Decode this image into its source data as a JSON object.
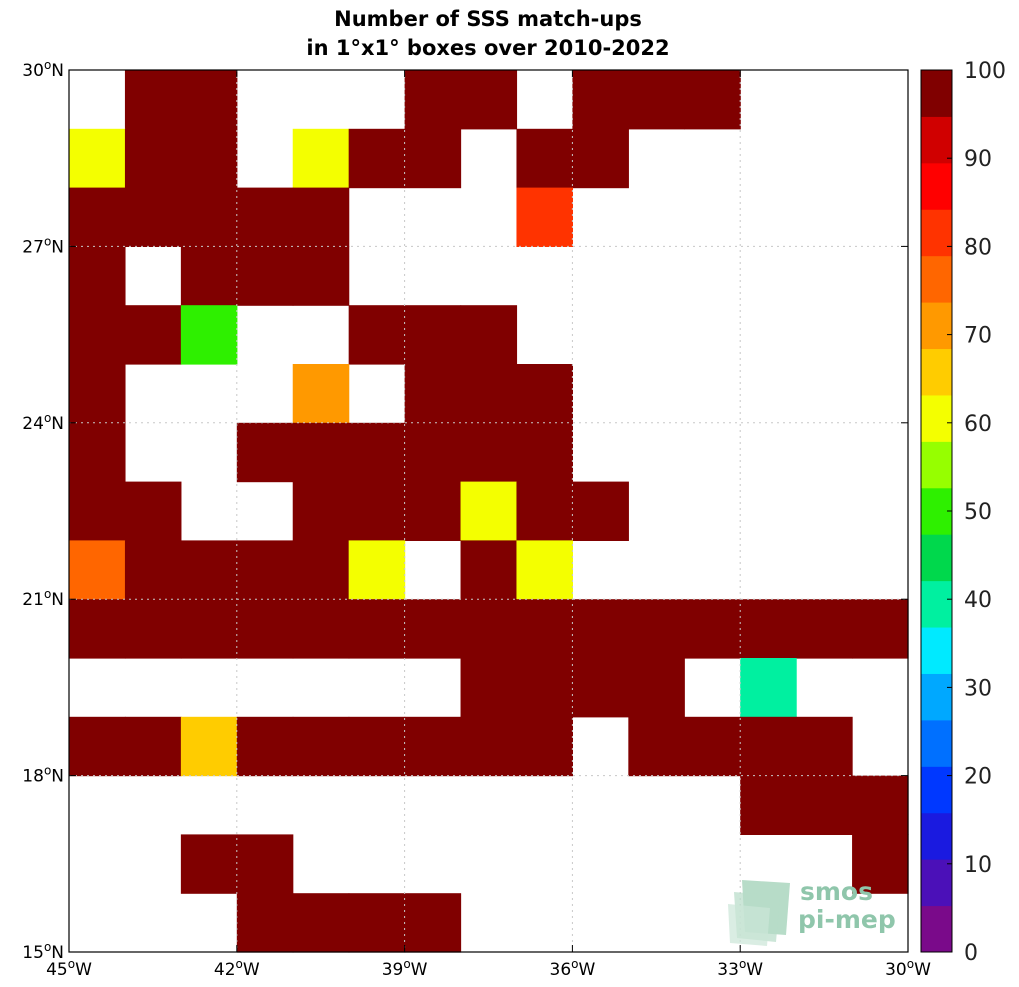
{
  "chart_data": {
    "type": "heatmap",
    "title": [
      "Number of SSS match-ups",
      "in 1°x1° boxes over 2010-2022"
    ],
    "x_ticks": [
      {
        "value": -45,
        "label": "45",
        "hemi": "W"
      },
      {
        "value": -42,
        "label": "42",
        "hemi": "W"
      },
      {
        "value": -39,
        "label": "39",
        "hemi": "W"
      },
      {
        "value": -36,
        "label": "36",
        "hemi": "W"
      },
      {
        "value": -33,
        "label": "33",
        "hemi": "W"
      },
      {
        "value": -30,
        "label": "30",
        "hemi": "W"
      }
    ],
    "y_ticks": [
      {
        "value": 15,
        "label": "15",
        "hemi": "N"
      },
      {
        "value": 18,
        "label": "18",
        "hemi": "N"
      },
      {
        "value": 21,
        "label": "21",
        "hemi": "N"
      },
      {
        "value": 24,
        "label": "24",
        "hemi": "N"
      },
      {
        "value": 27,
        "label": "27",
        "hemi": "N"
      },
      {
        "value": 30,
        "label": "30",
        "hemi": "N"
      }
    ],
    "xlim": [
      -45,
      -30
    ],
    "ylim": [
      15,
      30
    ],
    "grid": true,
    "cell_size_deg": 1,
    "colorbar": {
      "min": 0,
      "max": 100,
      "tick_labels": [
        "0",
        "10",
        "20",
        "30",
        "40",
        "50",
        "60",
        "70",
        "80",
        "90",
        "100"
      ],
      "colors": [
        "#7a0a8a",
        "#4b10b8",
        "#1a1ae0",
        "#0038ff",
        "#0070ff",
        "#00a8ff",
        "#00eaff",
        "#00f0a0",
        "#00d84c",
        "#2ef000",
        "#96ff00",
        "#f4ff00",
        "#ffcc00",
        "#ff9900",
        "#ff6600",
        "#ff3300",
        "#ff0000",
        "#d00000",
        "#800000"
      ]
    },
    "cells": [
      {
        "lon": -44,
        "lat": 29,
        "value": 100
      },
      {
        "lon": -43,
        "lat": 29,
        "value": 100
      },
      {
        "lon": -39,
        "lat": 29,
        "value": 100
      },
      {
        "lon": -38,
        "lat": 29,
        "value": 100
      },
      {
        "lon": -36,
        "lat": 29,
        "value": 100
      },
      {
        "lon": -35,
        "lat": 29,
        "value": 100
      },
      {
        "lon": -34,
        "lat": 29,
        "value": 100
      },
      {
        "lon": -45,
        "lat": 28,
        "value": 63
      },
      {
        "lon": -44,
        "lat": 28,
        "value": 100
      },
      {
        "lon": -43,
        "lat": 28,
        "value": 100
      },
      {
        "lon": -41,
        "lat": 28,
        "value": 63
      },
      {
        "lon": -40,
        "lat": 28,
        "value": 100
      },
      {
        "lon": -39,
        "lat": 28,
        "value": 100
      },
      {
        "lon": -37,
        "lat": 28,
        "value": 100
      },
      {
        "lon": -36,
        "lat": 28,
        "value": 100
      },
      {
        "lon": -45,
        "lat": 27,
        "value": 100
      },
      {
        "lon": -44,
        "lat": 27,
        "value": 100
      },
      {
        "lon": -43,
        "lat": 27,
        "value": 100
      },
      {
        "lon": -42,
        "lat": 27,
        "value": 100
      },
      {
        "lon": -41,
        "lat": 27,
        "value": 100
      },
      {
        "lon": -37,
        "lat": 27,
        "value": 83
      },
      {
        "lon": -45,
        "lat": 26,
        "value": 100
      },
      {
        "lon": -43,
        "lat": 26,
        "value": 100
      },
      {
        "lon": -42,
        "lat": 26,
        "value": 100
      },
      {
        "lon": -41,
        "lat": 26,
        "value": 100
      },
      {
        "lon": -45,
        "lat": 25,
        "value": 100
      },
      {
        "lon": -44,
        "lat": 25,
        "value": 100
      },
      {
        "lon": -43,
        "lat": 25,
        "value": 48
      },
      {
        "lon": -40,
        "lat": 25,
        "value": 100
      },
      {
        "lon": -39,
        "lat": 25,
        "value": 100
      },
      {
        "lon": -38,
        "lat": 25,
        "value": 100
      },
      {
        "lon": -45,
        "lat": 24,
        "value": 100
      },
      {
        "lon": -41,
        "lat": 24,
        "value": 73
      },
      {
        "lon": -39,
        "lat": 24,
        "value": 100
      },
      {
        "lon": -38,
        "lat": 24,
        "value": 100
      },
      {
        "lon": -37,
        "lat": 24,
        "value": 100
      },
      {
        "lon": -45,
        "lat": 23,
        "value": 100
      },
      {
        "lon": -42,
        "lat": 23,
        "value": 100
      },
      {
        "lon": -41,
        "lat": 23,
        "value": 100
      },
      {
        "lon": -40,
        "lat": 23,
        "value": 100
      },
      {
        "lon": -39,
        "lat": 23,
        "value": 100
      },
      {
        "lon": -38,
        "lat": 23,
        "value": 100
      },
      {
        "lon": -37,
        "lat": 23,
        "value": 100
      },
      {
        "lon": -45,
        "lat": 22,
        "value": 100
      },
      {
        "lon": -44,
        "lat": 22,
        "value": 100
      },
      {
        "lon": -41,
        "lat": 22,
        "value": 100
      },
      {
        "lon": -40,
        "lat": 22,
        "value": 100
      },
      {
        "lon": -39,
        "lat": 22,
        "value": 100
      },
      {
        "lon": -38,
        "lat": 22,
        "value": 58
      },
      {
        "lon": -37,
        "lat": 22,
        "value": 100
      },
      {
        "lon": -36,
        "lat": 22,
        "value": 100
      },
      {
        "lon": -45,
        "lat": 21,
        "value": 78
      },
      {
        "lon": -44,
        "lat": 21,
        "value": 100
      },
      {
        "lon": -43,
        "lat": 21,
        "value": 100
      },
      {
        "lon": -42,
        "lat": 21,
        "value": 100
      },
      {
        "lon": -41,
        "lat": 21,
        "value": 100
      },
      {
        "lon": -40,
        "lat": 21,
        "value": 58
      },
      {
        "lon": -38,
        "lat": 21,
        "value": 100
      },
      {
        "lon": -37,
        "lat": 21,
        "value": 58
      },
      {
        "lon": -45,
        "lat": 20,
        "value": 100
      },
      {
        "lon": -44,
        "lat": 20,
        "value": 100
      },
      {
        "lon": -43,
        "lat": 20,
        "value": 100
      },
      {
        "lon": -42,
        "lat": 20,
        "value": 100
      },
      {
        "lon": -41,
        "lat": 20,
        "value": 100
      },
      {
        "lon": -40,
        "lat": 20,
        "value": 100
      },
      {
        "lon": -39,
        "lat": 20,
        "value": 100
      },
      {
        "lon": -38,
        "lat": 20,
        "value": 100
      },
      {
        "lon": -37,
        "lat": 20,
        "value": 100
      },
      {
        "lon": -36,
        "lat": 20,
        "value": 100
      },
      {
        "lon": -35,
        "lat": 20,
        "value": 100
      },
      {
        "lon": -34,
        "lat": 20,
        "value": 100
      },
      {
        "lon": -33,
        "lat": 20,
        "value": 100
      },
      {
        "lon": -32,
        "lat": 20,
        "value": 100
      },
      {
        "lon": -31,
        "lat": 20,
        "value": 100
      },
      {
        "lon": -38,
        "lat": 19,
        "value": 100
      },
      {
        "lon": -37,
        "lat": 19,
        "value": 100
      },
      {
        "lon": -36,
        "lat": 19,
        "value": 100
      },
      {
        "lon": -35,
        "lat": 19,
        "value": 100
      },
      {
        "lon": -33,
        "lat": 19,
        "value": 38
      },
      {
        "lon": -45,
        "lat": 18,
        "value": 100
      },
      {
        "lon": -44,
        "lat": 18,
        "value": 100
      },
      {
        "lon": -43,
        "lat": 18,
        "value": 68
      },
      {
        "lon": -42,
        "lat": 18,
        "value": 100
      },
      {
        "lon": -41,
        "lat": 18,
        "value": 100
      },
      {
        "lon": -40,
        "lat": 18,
        "value": 100
      },
      {
        "lon": -39,
        "lat": 18,
        "value": 100
      },
      {
        "lon": -38,
        "lat": 18,
        "value": 100
      },
      {
        "lon": -37,
        "lat": 18,
        "value": 100
      },
      {
        "lon": -35,
        "lat": 18,
        "value": 100
      },
      {
        "lon": -34,
        "lat": 18,
        "value": 100
      },
      {
        "lon": -33,
        "lat": 18,
        "value": 100
      },
      {
        "lon": -32,
        "lat": 18,
        "value": 100
      },
      {
        "lon": -33,
        "lat": 17,
        "value": 100
      },
      {
        "lon": -32,
        "lat": 17,
        "value": 100
      },
      {
        "lon": -31,
        "lat": 17,
        "value": 100
      },
      {
        "lon": -43,
        "lat": 16,
        "value": 100
      },
      {
        "lon": -42,
        "lat": 16,
        "value": 100
      },
      {
        "lon": -31,
        "lat": 16,
        "value": 100
      },
      {
        "lon": -42,
        "lat": 15,
        "value": 100
      },
      {
        "lon": -41,
        "lat": 15,
        "value": 100
      },
      {
        "lon": -40,
        "lat": 15,
        "value": 100
      },
      {
        "lon": -39,
        "lat": 15,
        "value": 100
      }
    ]
  },
  "logo": {
    "line1": "smos",
    "line2": "pi-mep"
  }
}
